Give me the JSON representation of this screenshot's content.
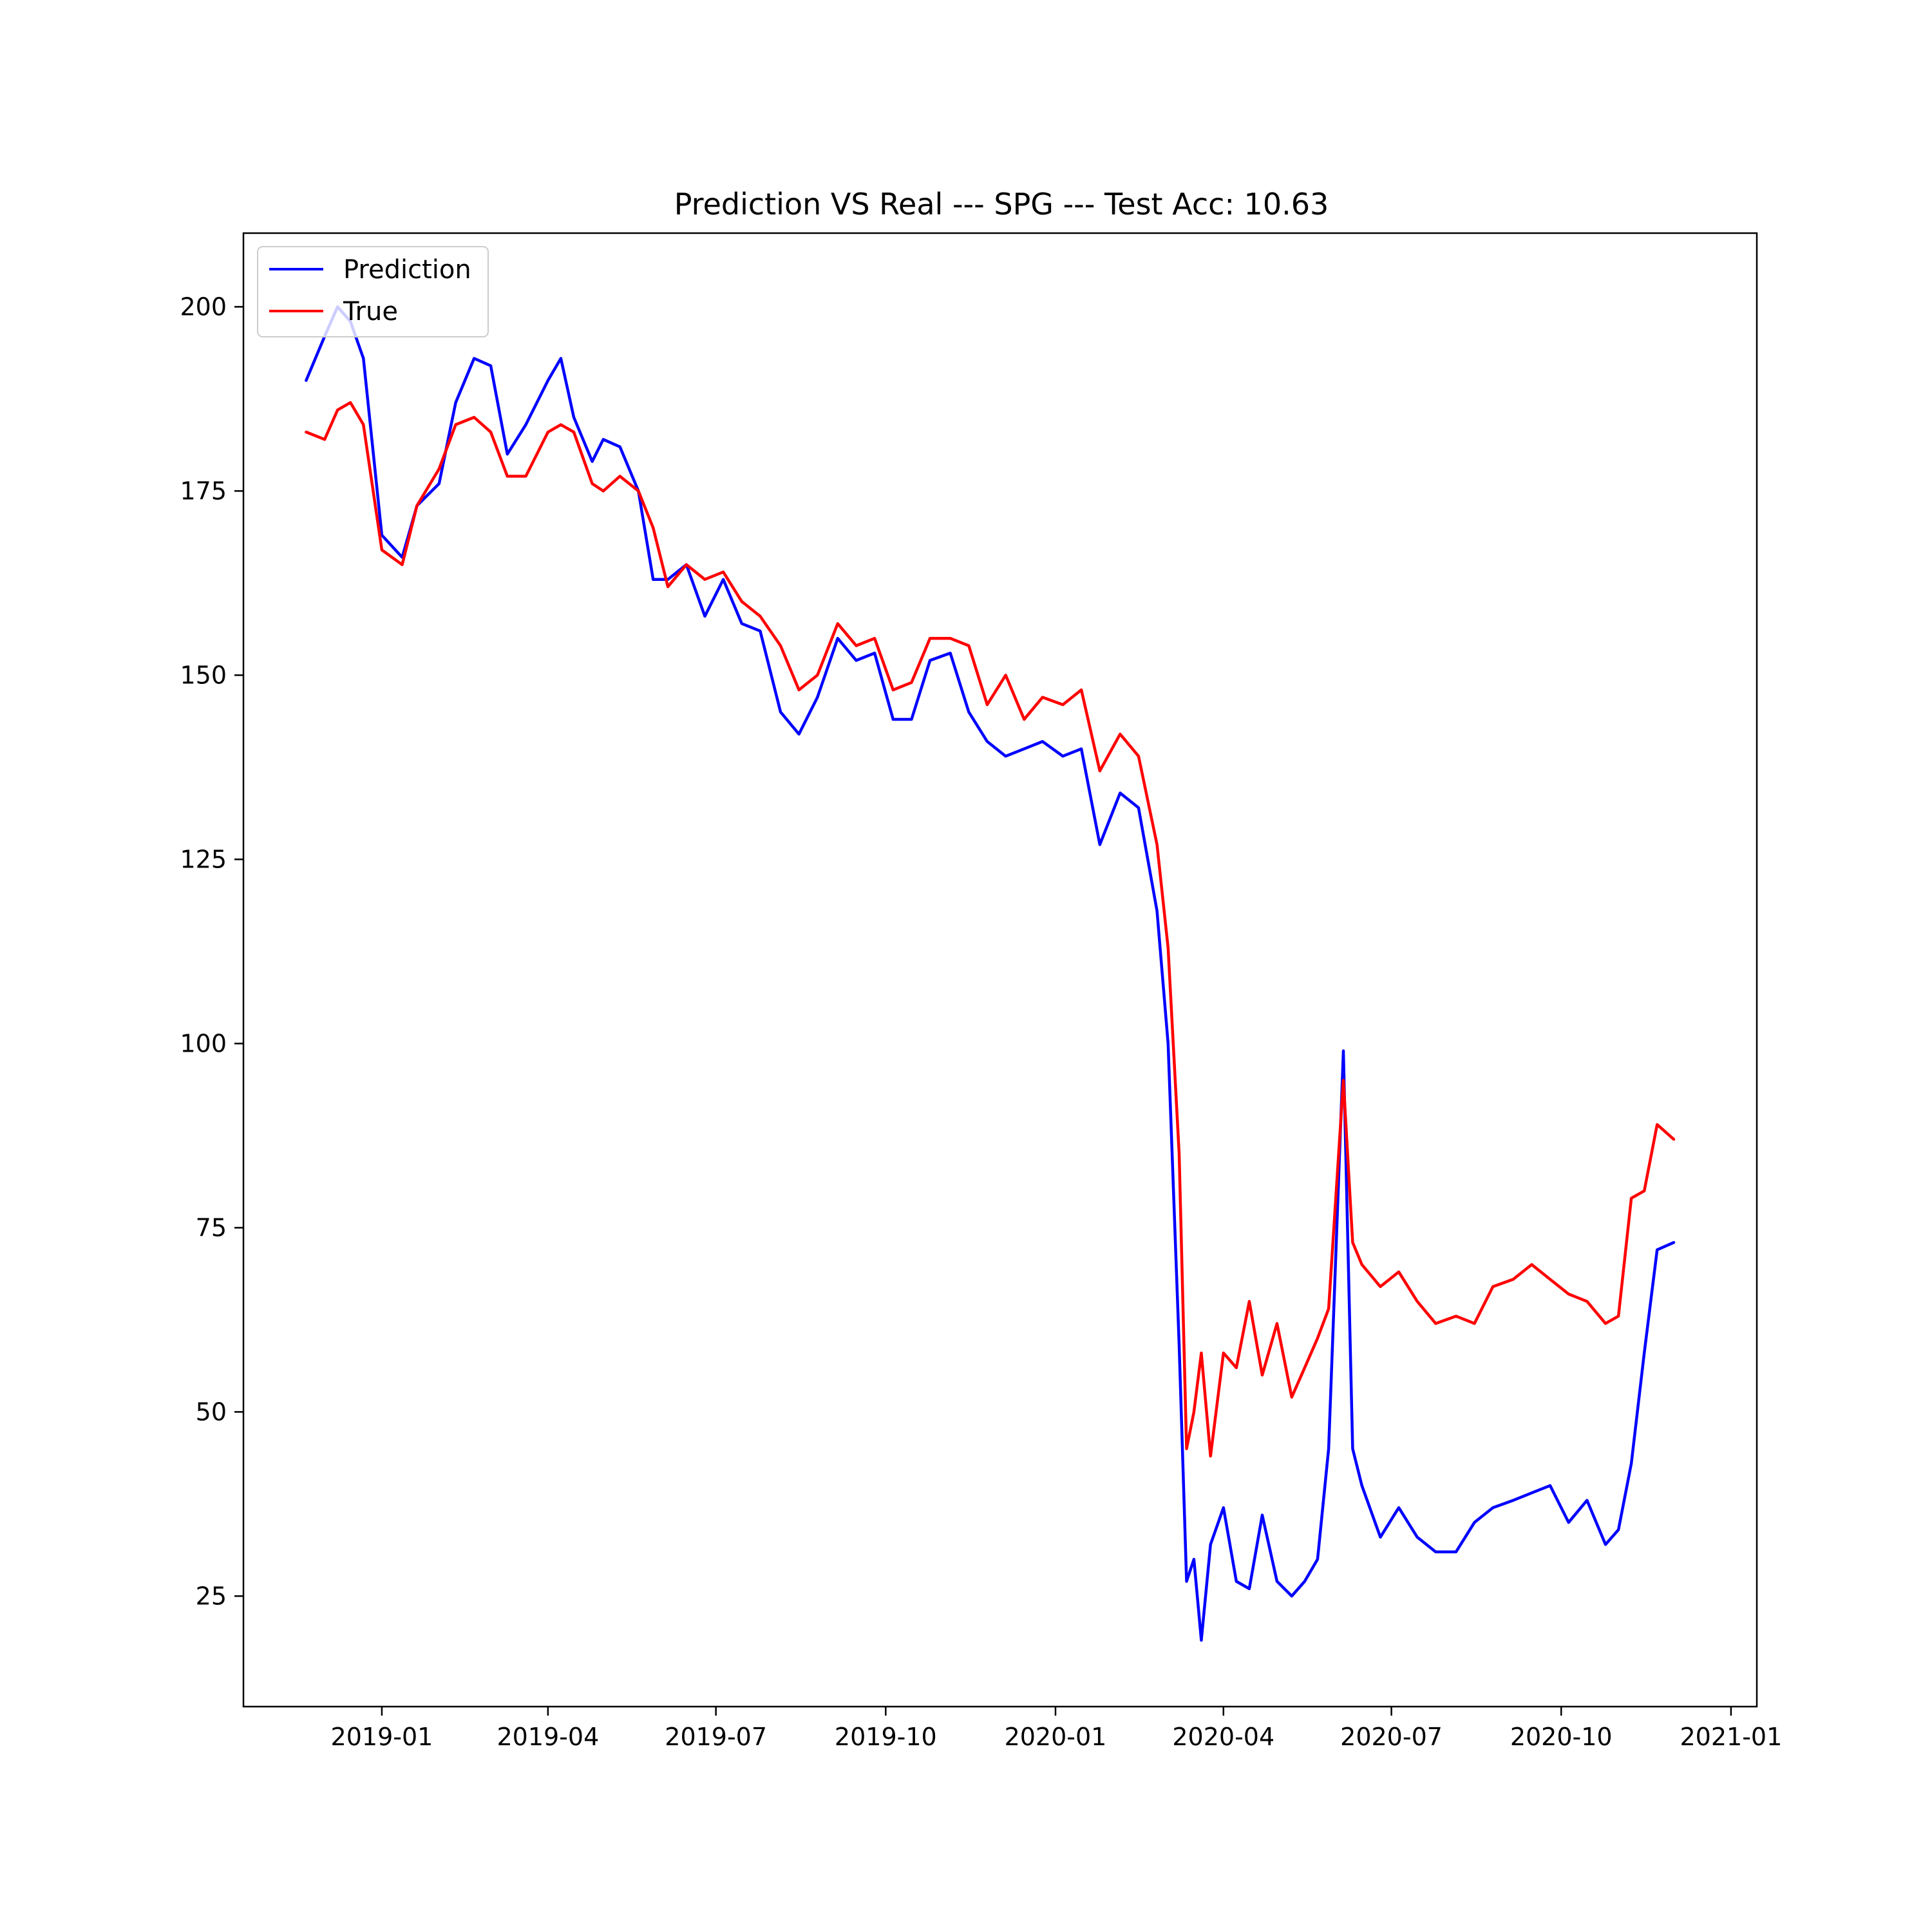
{
  "chart_data": {
    "type": "line",
    "title": "Prediction VS Real --- SPG --- Test Acc: 10.63",
    "xlabel": "",
    "ylabel": "",
    "x_ticks": [
      "2019-01",
      "2019-04",
      "2019-07",
      "2019-10",
      "2020-01",
      "2020-04",
      "2020-07",
      "2020-10",
      "2021-01"
    ],
    "y_ticks": [
      25,
      50,
      75,
      100,
      125,
      150,
      175,
      200
    ],
    "xlim": [
      "2018-10-18",
      "2021-01-15"
    ],
    "ylim": [
      10,
      210
    ],
    "grid": false,
    "legend_position": "upper-left",
    "x": [
      "2018-11-21",
      "2018-12-01",
      "2018-12-08",
      "2018-12-15",
      "2018-12-22",
      "2019-01-01",
      "2019-01-12",
      "2019-01-20",
      "2019-02-01",
      "2019-02-10",
      "2019-02-20",
      "2019-03-01",
      "2019-03-10",
      "2019-03-20",
      "2019-04-01",
      "2019-04-08",
      "2019-04-15",
      "2019-04-25",
      "2019-05-01",
      "2019-05-10",
      "2019-05-20",
      "2019-05-28",
      "2019-06-05",
      "2019-06-15",
      "2019-06-25",
      "2019-07-05",
      "2019-07-15",
      "2019-07-25",
      "2019-08-05",
      "2019-08-15",
      "2019-08-25",
      "2019-09-05",
      "2019-09-15",
      "2019-09-25",
      "2019-10-05",
      "2019-10-15",
      "2019-10-25",
      "2019-11-05",
      "2019-11-15",
      "2019-11-25",
      "2019-12-05",
      "2019-12-15",
      "2019-12-25",
      "2020-01-05",
      "2020-01-15",
      "2020-01-25",
      "2020-02-05",
      "2020-02-15",
      "2020-02-25",
      "2020-03-02",
      "2020-03-08",
      "2020-03-12",
      "2020-03-16",
      "2020-03-20",
      "2020-03-25",
      "2020-04-01",
      "2020-04-08",
      "2020-04-15",
      "2020-04-22",
      "2020-04-30",
      "2020-05-08",
      "2020-05-15",
      "2020-05-22",
      "2020-05-28",
      "2020-06-05",
      "2020-06-10",
      "2020-06-15",
      "2020-06-25",
      "2020-07-05",
      "2020-07-15",
      "2020-07-25",
      "2020-08-05",
      "2020-08-15",
      "2020-08-25",
      "2020-09-05",
      "2020-09-15",
      "2020-09-25",
      "2020-10-05",
      "2020-10-15",
      "2020-10-25",
      "2020-11-01",
      "2020-11-08",
      "2020-11-15",
      "2020-11-22",
      "2020-12-01"
    ],
    "series": [
      {
        "name": "Prediction",
        "color": "#0000ff",
        "values": [
          190,
          196,
          200,
          198,
          193,
          169,
          166,
          173,
          176,
          187,
          193,
          192,
          180,
          184,
          190,
          193,
          185,
          179,
          182,
          181,
          175,
          163,
          163,
          165,
          158,
          163,
          157,
          156,
          145,
          142,
          147,
          155,
          152,
          153,
          144,
          144,
          152,
          153,
          145,
          141,
          139,
          140,
          141,
          139,
          140,
          127,
          134,
          132,
          118,
          100,
          59,
          27,
          30,
          19,
          32,
          37,
          27,
          26,
          36,
          27,
          25,
          27,
          30,
          45,
          99,
          45,
          40,
          33,
          37,
          33,
          31,
          31,
          35,
          37,
          38,
          39,
          40,
          35,
          38,
          32,
          34,
          43,
          58,
          72,
          73
        ],
        "values_note": ""
      },
      {
        "name": "True",
        "color": "#ff0000",
        "values": [
          183,
          182,
          186,
          187,
          184,
          167,
          165,
          173,
          178,
          184,
          185,
          183,
          177,
          177,
          183,
          184,
          183,
          176,
          175,
          177,
          175,
          170,
          162,
          165,
          163,
          164,
          160,
          158,
          154,
          148,
          150,
          157,
          154,
          155,
          148,
          149,
          155,
          155,
          154,
          146,
          150,
          144,
          147,
          146,
          148,
          137,
          142,
          139,
          127,
          113,
          85,
          45,
          50,
          58,
          44,
          58,
          56,
          65,
          55,
          62,
          52,
          56,
          60,
          64,
          95,
          73,
          70,
          67,
          69,
          65,
          62,
          63,
          62,
          67,
          68,
          70,
          68,
          66,
          65,
          62,
          63,
          79,
          80,
          89,
          87
        ]
      }
    ]
  }
}
